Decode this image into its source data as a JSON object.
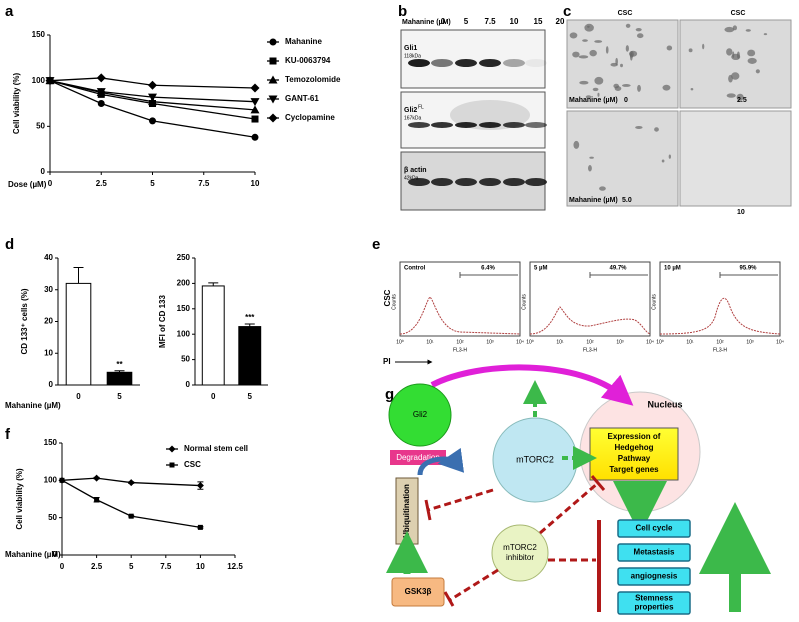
{
  "panel_labels": [
    "a",
    "b",
    "c",
    "d",
    "e",
    "f",
    "g"
  ],
  "chart_data": [
    {
      "type": "line",
      "xlabel": "Dose (µM)",
      "ylabel": "Cell viability (%)",
      "x": [
        0,
        2.5,
        5,
        10
      ],
      "xlim": [
        0,
        10
      ],
      "xticks": [
        0,
        2.5,
        5,
        7.5,
        10
      ],
      "ylim": [
        0,
        150
      ],
      "yticks": [
        0,
        50,
        100,
        150
      ],
      "series": [
        {
          "name": "Mahanine",
          "color": "#000000",
          "marker": "circle",
          "values": [
            100,
            75,
            56,
            38
          ]
        },
        {
          "name": "KU-0063794",
          "color": "#000000",
          "marker": "square",
          "values": [
            100,
            85,
            75,
            58
          ]
        },
        {
          "name": "Temozolomide",
          "color": "#000000",
          "marker": "triangle",
          "values": [
            100,
            87,
            77,
            68
          ]
        },
        {
          "name": "GANT-61",
          "color": "#000000",
          "marker": "triangle-down",
          "values": [
            100,
            88,
            82,
            77
          ]
        },
        {
          "name": "Cyclopamine",
          "color": "#000000",
          "marker": "diamond",
          "values": [
            100,
            103,
            95,
            92
          ]
        }
      ]
    },
    {
      "type": "bar",
      "ylabel": "CD 133⁺ cells (%)",
      "xlabel": "Mahanine (µM)",
      "categories": [
        "0",
        "5"
      ],
      "values": [
        32,
        4
      ],
      "errors": [
        5,
        0.5
      ],
      "colors": [
        "#ffffff",
        "#000000"
      ],
      "significance_labels": [
        "**"
      ],
      "ylim": [
        0,
        40
      ],
      "yticks": [
        0,
        10,
        20,
        30,
        40
      ]
    },
    {
      "type": "bar",
      "ylabel": "MFI of CD 133",
      "categories": [
        "0",
        "5"
      ],
      "values": [
        195,
        115
      ],
      "errors": [
        6,
        5
      ],
      "colors": [
        "#ffffff",
        "#000000"
      ],
      "significance_labels": [
        "***"
      ],
      "ylim": [
        0,
        250
      ],
      "yticks": [
        0,
        50,
        100,
        150,
        200,
        250
      ]
    },
    {
      "type": "line",
      "xlabel": "Mahanine (µM)",
      "ylabel": "Cell viability (%)",
      "x": [
        0,
        2.5,
        5,
        10
      ],
      "xlim": [
        0,
        12.5
      ],
      "xticks": [
        0,
        2.5,
        5,
        7.5,
        10,
        12.5
      ],
      "ylim": [
        0,
        150
      ],
      "yticks": [
        0,
        50,
        100,
        150
      ],
      "series": [
        {
          "name": "Normal stem cell",
          "color": "#000000",
          "marker": "diamond-small",
          "values": [
            100,
            103,
            97,
            93
          ],
          "errors": [
            0,
            1,
            1,
            5
          ]
        },
        {
          "name": "CSC",
          "color": "#000000",
          "marker": "square-small",
          "values": [
            100,
            74,
            52,
            37
          ],
          "errors": [
            0,
            3,
            1,
            1
          ]
        }
      ]
    }
  ],
  "blot": {
    "header": "Mahanine (µM)",
    "doses": [
      "0",
      "5",
      "7.5",
      "10",
      "15",
      "20"
    ],
    "rows": [
      {
        "name": "Gli1",
        "size": "118kDa"
      },
      {
        "name": "Gli2",
        "superscript": "FL",
        "size": "167kDa"
      },
      {
        "name": "β actin",
        "size": "42kDa"
      }
    ]
  },
  "micrographs": {
    "headers": [
      "CSC",
      "CSC"
    ],
    "treatment_label": "Mahanine (µM)",
    "doses": [
      "0",
      "2.5",
      "5.0",
      "10"
    ]
  },
  "flow": {
    "row_label": "CSC",
    "axis_label": "PI",
    "x_label": "FL3-H",
    "y_label": "Counts",
    "tick_labels": [
      "10⁰",
      "10¹",
      "10²",
      "10³",
      "10⁴"
    ],
    "panels": [
      {
        "label": "Control",
        "percent": "6.4%"
      },
      {
        "label": "5 µM",
        "percent": "49.7%"
      },
      {
        "label": "10 µM",
        "percent": "95.9%"
      }
    ]
  },
  "diagram": {
    "gli2": "Gli2",
    "degradation": "Degradation",
    "mtorc2": "mTORC2",
    "nucleus": "Nucleus",
    "expression": [
      "Expression of",
      "Hedgehog",
      "Pathway",
      "Target genes"
    ],
    "ubiquitination": "Ubiquitination",
    "gsk3b": "GSK3β",
    "inhibitor": [
      "mTORC2",
      "inhibitor"
    ],
    "outcomes": [
      [
        "Cell cycle"
      ],
      [
        "Metastasis"
      ],
      [
        "angiognesis"
      ],
      [
        "Stemness",
        "properties"
      ]
    ]
  }
}
